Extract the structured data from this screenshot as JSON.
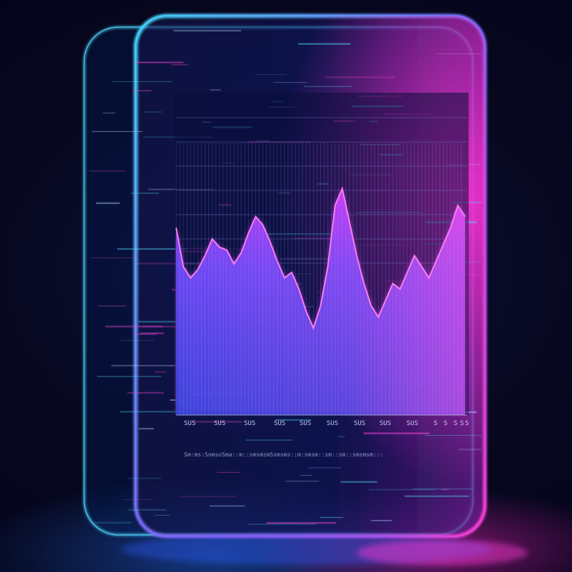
{
  "scene": {
    "description_colors": {
      "background": "#05061a",
      "accent_cyan": "#3fd2ff",
      "accent_magenta": "#ff2fd0",
      "accent_blue": "#2f5bff"
    }
  },
  "chart_data": {
    "type": "area",
    "x": [
      0,
      1,
      2,
      3,
      4,
      5,
      6,
      7,
      8,
      9,
      10,
      11,
      12,
      13,
      14,
      15,
      16,
      17,
      18,
      19,
      20,
      21,
      22,
      23,
      24,
      25,
      26,
      27,
      28,
      29,
      30,
      31,
      32,
      33,
      34,
      35,
      36,
      37,
      38,
      39,
      40
    ],
    "values": [
      62,
      48,
      44,
      47,
      52,
      58,
      55,
      54,
      49,
      53,
      60,
      66,
      63,
      57,
      50,
      44,
      46,
      40,
      32,
      26,
      34,
      48,
      70,
      76,
      64,
      52,
      42,
      34,
      30,
      36,
      42,
      40,
      46,
      52,
      48,
      44,
      50,
      56,
      62,
      70,
      66
    ],
    "ylim": [
      0,
      100
    ],
    "grid": true,
    "tick_labels": [
      "SUS",
      "SUS",
      "SUS",
      "SUS",
      "SUS",
      "SUS",
      "SUS",
      "SUS",
      "SUS",
      "S",
      "S",
      "S",
      "S",
      "S"
    ],
    "footer_text": "Sm:ms:SomsoSma::m::smsmsmSsmsms::m:smsm::sm::sm::smsmsm:::"
  }
}
